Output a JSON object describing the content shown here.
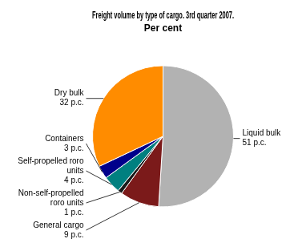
{
  "chart_data": {
    "type": "pie",
    "title": "Freight volume by type of cargo. 3rd quarter 2007.",
    "subtitle": "Per cent",
    "categories": [
      "Liquid bulk",
      "General cargo",
      "Non-self-propelled roro units",
      "Self-propelled roro units",
      "Containers",
      "Dry bulk"
    ],
    "values": [
      51,
      9,
      1,
      4,
      3,
      32
    ],
    "value_labels": [
      "51 p.c.",
      "9 p.c.",
      "1 p.c.",
      "4 p.c.",
      "3 p.c.",
      "32 p.c."
    ],
    "colors": [
      "#b2b2b2",
      "#7b1a1a",
      "#1a1a1a",
      "#008080",
      "#00008b",
      "#ff8c00"
    ],
    "data_labels": true
  }
}
